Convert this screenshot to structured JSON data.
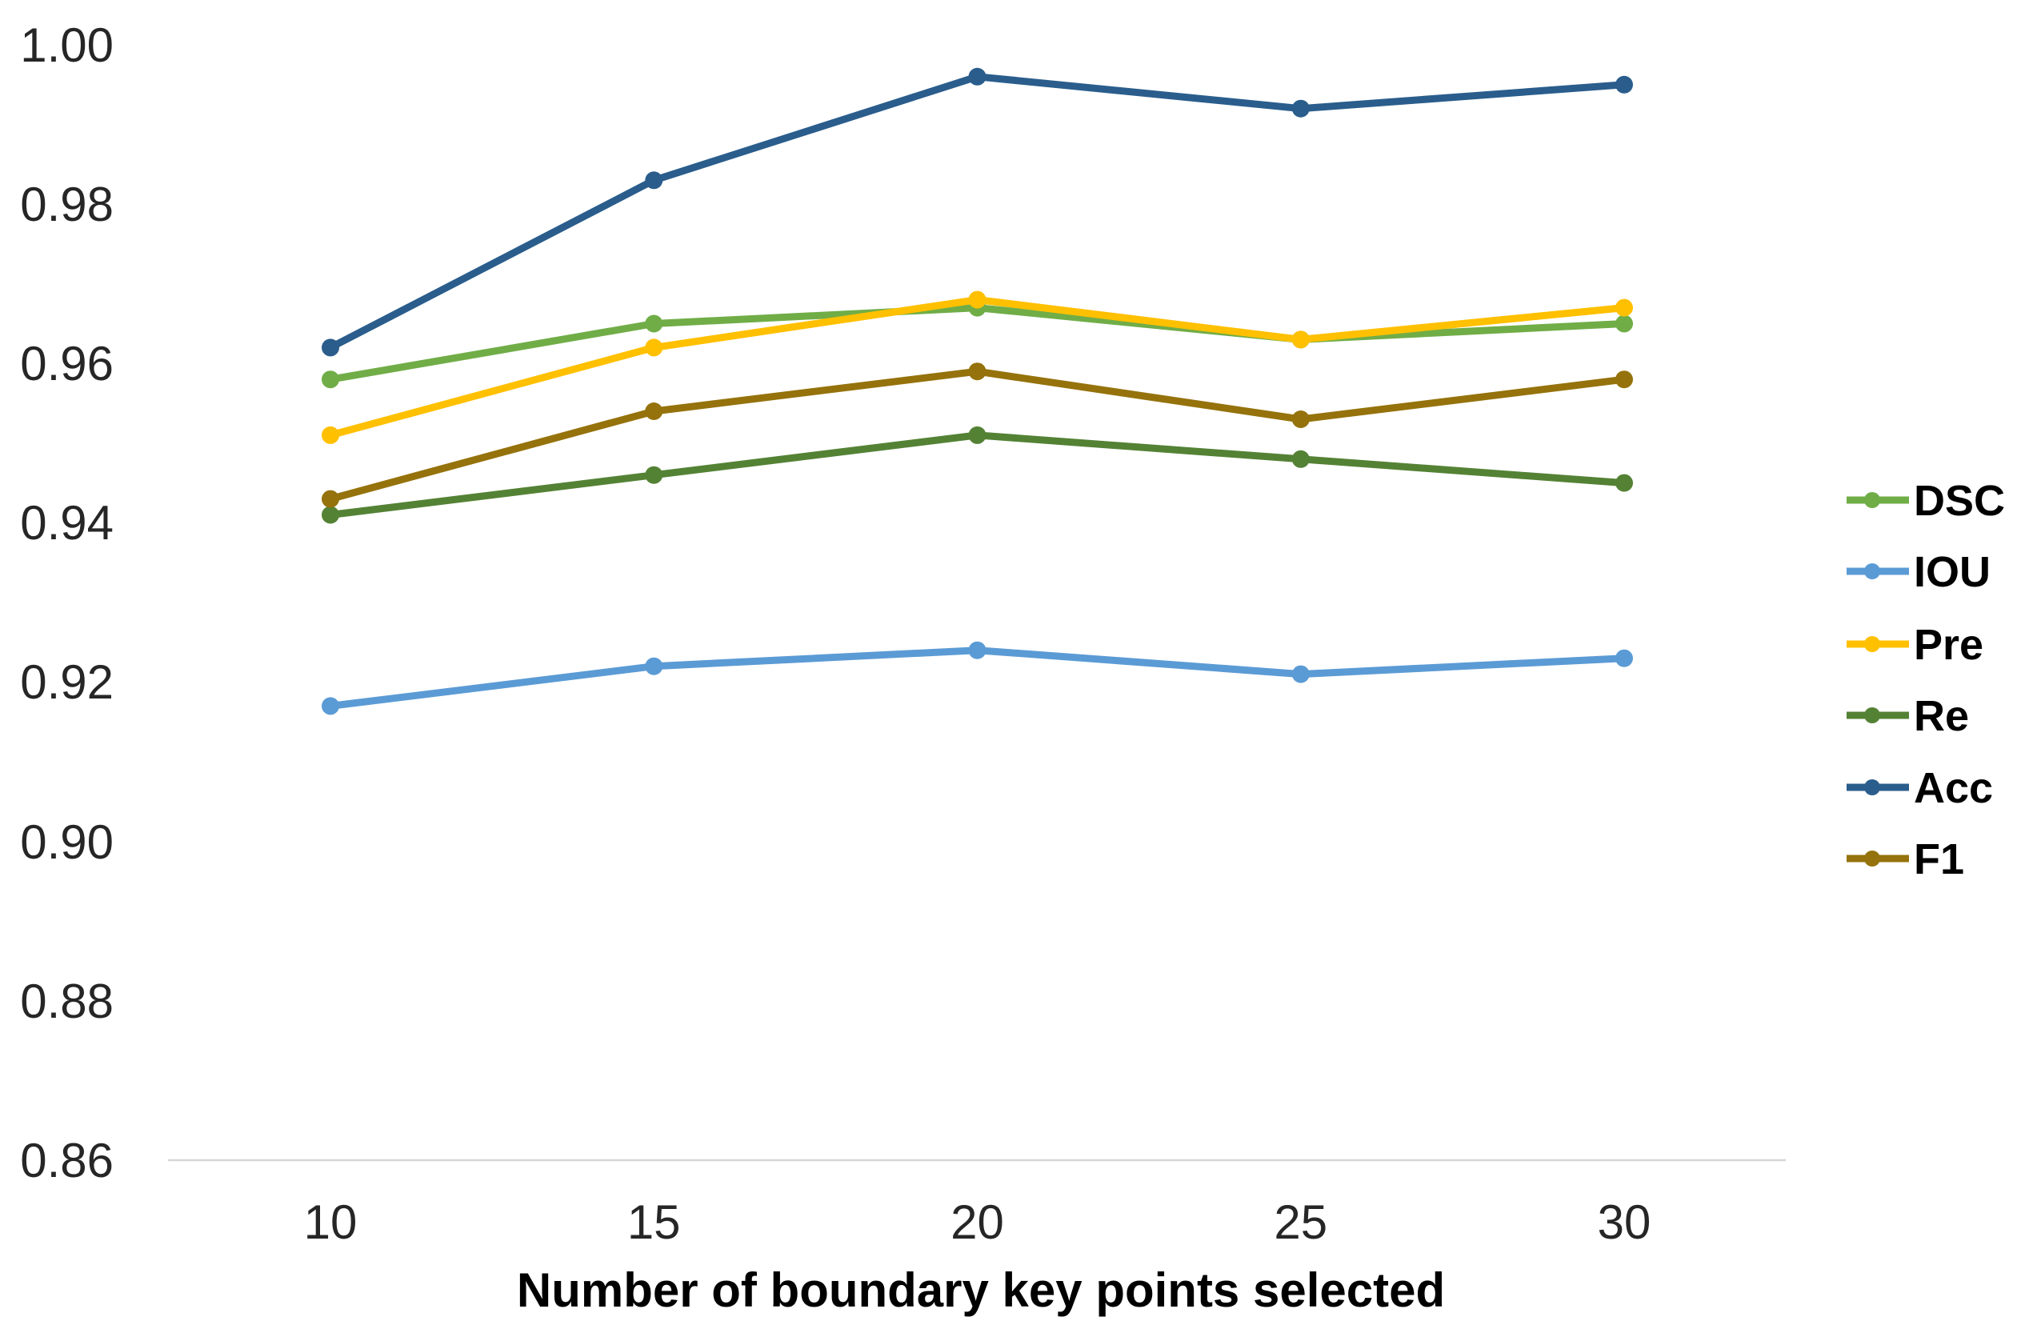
{
  "chart_data": {
    "type": "line",
    "title": "",
    "xlabel": "Number of boundary key points selected",
    "ylabel": "",
    "categories": [
      10,
      15,
      20,
      25,
      30
    ],
    "x_tick_labels": [
      "10",
      "15",
      "20",
      "25",
      "30"
    ],
    "y_tick_labels": [
      "1.00",
      "0.98",
      "0.96",
      "0.94",
      "0.92",
      "0.90",
      "0.88",
      "0.86"
    ],
    "ylim": [
      0.86,
      1.0
    ],
    "y_tick_step": 0.02,
    "grid": false,
    "legend_position": "right",
    "series": [
      {
        "name": "DSC",
        "color": "#70AD47",
        "values": [
          0.958,
          0.965,
          0.967,
          0.963,
          0.965
        ]
      },
      {
        "name": "IOU",
        "color": "#5B9BD5",
        "values": [
          0.917,
          0.922,
          0.924,
          0.921,
          0.923
        ]
      },
      {
        "name": "Pre",
        "color": "#FFC000",
        "values": [
          0.951,
          0.962,
          0.968,
          0.963,
          0.967
        ]
      },
      {
        "name": "Re",
        "color": "#548235",
        "values": [
          0.941,
          0.946,
          0.951,
          0.948,
          0.945
        ]
      },
      {
        "name": "Acc",
        "color": "#2A5D8C",
        "values": [
          0.962,
          0.983,
          0.996,
          0.992,
          0.995
        ]
      },
      {
        "name": "F1",
        "color": "#95720B",
        "values": [
          0.943,
          0.954,
          0.959,
          0.953,
          0.958
        ]
      }
    ],
    "style": {
      "tick_text_color": "#262626",
      "axis_line_color": "#d6d6d6",
      "background": "#ffffff"
    }
  }
}
